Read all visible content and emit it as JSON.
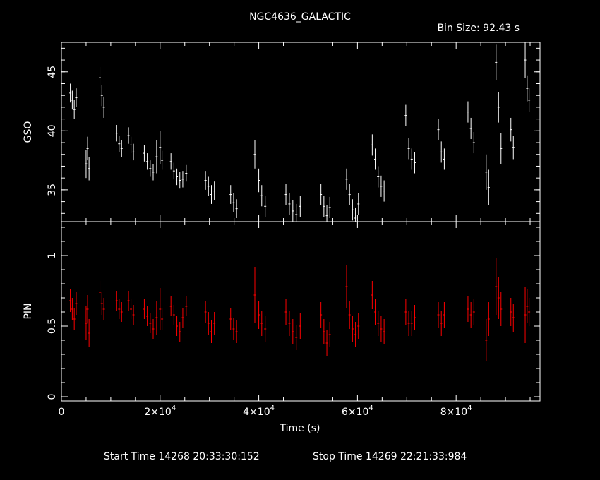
{
  "title": "NGC4636_GALACTIC",
  "bin_size": "Bin Size: 92.43 s",
  "start_time": "Start Time 14268 20:33:30:152",
  "stop_time": "Stop Time 14269 22:21:33:984",
  "colors": {
    "gso": "#ffffff",
    "pin": "#ff0000",
    "background": "#000000",
    "axes": "#ffffff"
  },
  "chart_data": [
    {
      "type": "scatter",
      "name": "GSO",
      "ylabel": "GSO",
      "xlabel": "",
      "xlim": [
        0,
        97000
      ],
      "ylim": [
        32.3,
        47.5
      ],
      "y_ticks": [
        35,
        40,
        45
      ],
      "y_tick_labels": [
        "35",
        "40",
        "45"
      ],
      "x_ticks": [
        0,
        20000,
        40000,
        60000,
        80000
      ],
      "series": [
        {
          "x": [
            1800,
            2200,
            2600,
            3000,
            5000,
            5300,
            5600,
            7800,
            8200,
            8600,
            11200,
            11700,
            12200,
            13600,
            14100,
            14600,
            16800,
            17400,
            18000,
            18600,
            19300,
            20000,
            20400,
            22200,
            22800,
            23400,
            24000,
            24600,
            25300,
            29200,
            29800,
            30400,
            31000,
            34300,
            34900,
            35500,
            39200,
            40000,
            40600,
            41300,
            45500,
            46200,
            46900,
            47600,
            48400,
            52600,
            53200,
            53800,
            54400,
            57800,
            58400,
            59000,
            59600,
            60200,
            63000,
            63600,
            64200,
            64800,
            65400,
            69800,
            70400,
            71000,
            71600,
            76400,
            77000,
            77600,
            82400,
            83000,
            83600,
            86100,
            86600,
            88100,
            88600,
            89100,
            91100,
            91600,
            94000,
            94400,
            94800
          ],
          "y": [
            43.2,
            42.6,
            41.8,
            42.8,
            37.2,
            38.5,
            36.8,
            44.5,
            43.0,
            42.0,
            39.8,
            38.9,
            38.5,
            39.6,
            38.8,
            38.2,
            38.1,
            37.4,
            36.8,
            36.5,
            37.8,
            38.6,
            37.5,
            37.4,
            36.6,
            36.1,
            35.8,
            35.9,
            36.4,
            35.8,
            35.3,
            34.6,
            34.9,
            34.6,
            33.9,
            33.4,
            38.0,
            35.8,
            34.5,
            33.6,
            34.6,
            33.8,
            33.2,
            32.9,
            33.6,
            34.6,
            33.6,
            32.8,
            33.5,
            35.9,
            34.6,
            33.3,
            32.6,
            33.8,
            38.8,
            37.6,
            36.1,
            35.3,
            34.9,
            41.3,
            38.5,
            37.6,
            37.3,
            40.1,
            38.2,
            37.6,
            41.6,
            40.2,
            39.0,
            36.5,
            35.2,
            45.8,
            42.0,
            38.5,
            40.1,
            38.6,
            46.0,
            43.6,
            42.6
          ],
          "err": [
            0.8,
            0.8,
            0.8,
            0.8,
            1.2,
            1.0,
            1.0,
            0.9,
            0.9,
            0.9,
            0.7,
            0.7,
            0.7,
            0.7,
            0.7,
            0.7,
            0.7,
            0.7,
            0.7,
            0.7,
            1.4,
            1.4,
            0.8,
            0.7,
            0.7,
            0.7,
            0.7,
            0.7,
            0.7,
            0.8,
            0.8,
            0.8,
            0.8,
            0.8,
            0.8,
            0.8,
            1.2,
            1.0,
            0.9,
            0.9,
            0.9,
            0.9,
            0.9,
            0.9,
            0.9,
            0.9,
            0.9,
            0.9,
            0.9,
            0.9,
            0.9,
            0.9,
            0.9,
            0.9,
            0.9,
            0.9,
            0.9,
            0.9,
            0.9,
            0.9,
            0.9,
            0.9,
            0.9,
            0.9,
            0.9,
            0.9,
            0.9,
            0.9,
            0.9,
            1.5,
            1.5,
            1.5,
            1.3,
            1.3,
            1.0,
            1.0,
            1.5,
            1.1,
            1.0
          ]
        }
      ]
    },
    {
      "type": "scatter",
      "name": "PIN",
      "ylabel": "PIN",
      "xlabel": "Time (s)",
      "xlim": [
        0,
        97000
      ],
      "ylim": [
        -0.03,
        1.24
      ],
      "y_ticks": [
        0,
        0.5,
        1
      ],
      "y_tick_labels": [
        "0",
        "0.5",
        "1"
      ],
      "x_ticks": [
        0,
        20000,
        40000,
        60000,
        80000
      ],
      "x_tick_labels": [
        {
          "mantissa": "0",
          "exp": ""
        },
        {
          "mantissa": "2×10",
          "exp": "4"
        },
        {
          "mantissa": "4×10",
          "exp": "4"
        },
        {
          "mantissa": "6×10",
          "exp": "4"
        },
        {
          "mantissa": "8×10",
          "exp": "4"
        }
      ],
      "series": [
        {
          "x": [
            1800,
            2200,
            2600,
            3000,
            5000,
            5300,
            5600,
            7800,
            8200,
            8600,
            11200,
            11700,
            12200,
            13600,
            14100,
            14600,
            16800,
            17400,
            18000,
            18600,
            19300,
            20000,
            20400,
            22200,
            22800,
            23400,
            24000,
            24600,
            25300,
            29200,
            29800,
            30400,
            31000,
            34300,
            34900,
            35500,
            39200,
            40000,
            40600,
            41300,
            45500,
            46200,
            46900,
            47600,
            48400,
            52600,
            53200,
            53800,
            54400,
            57800,
            58400,
            59000,
            59600,
            60200,
            63000,
            63600,
            64200,
            64800,
            65400,
            69800,
            70400,
            71000,
            71600,
            76400,
            77000,
            77600,
            82400,
            83000,
            83600,
            86100,
            86600,
            88100,
            88600,
            89100,
            91100,
            91600,
            94000,
            94400,
            94800
          ],
          "y": [
            0.68,
            0.62,
            0.55,
            0.66,
            0.52,
            0.62,
            0.45,
            0.74,
            0.66,
            0.62,
            0.68,
            0.62,
            0.6,
            0.68,
            0.62,
            0.58,
            0.62,
            0.57,
            0.52,
            0.48,
            0.56,
            0.62,
            0.55,
            0.64,
            0.58,
            0.5,
            0.46,
            0.56,
            0.64,
            0.6,
            0.52,
            0.46,
            0.52,
            0.55,
            0.48,
            0.46,
            0.72,
            0.58,
            0.52,
            0.48,
            0.6,
            0.52,
            0.46,
            0.42,
            0.5,
            0.58,
            0.46,
            0.38,
            0.44,
            0.78,
            0.58,
            0.48,
            0.44,
            0.5,
            0.72,
            0.6,
            0.52,
            0.48,
            0.46,
            0.6,
            0.52,
            0.52,
            0.56,
            0.58,
            0.52,
            0.58,
            0.62,
            0.58,
            0.6,
            0.4,
            0.55,
            0.78,
            0.7,
            0.62,
            0.6,
            0.56,
            0.58,
            0.64,
            0.6
          ],
          "err": [
            0.08,
            0.08,
            0.08,
            0.08,
            0.12,
            0.1,
            0.1,
            0.08,
            0.08,
            0.08,
            0.07,
            0.07,
            0.07,
            0.07,
            0.07,
            0.07,
            0.07,
            0.07,
            0.07,
            0.07,
            0.12,
            0.15,
            0.08,
            0.07,
            0.07,
            0.07,
            0.07,
            0.07,
            0.07,
            0.08,
            0.08,
            0.08,
            0.08,
            0.08,
            0.08,
            0.08,
            0.2,
            0.1,
            0.09,
            0.09,
            0.09,
            0.09,
            0.09,
            0.09,
            0.09,
            0.09,
            0.09,
            0.09,
            0.09,
            0.15,
            0.1,
            0.09,
            0.09,
            0.09,
            0.1,
            0.09,
            0.09,
            0.09,
            0.09,
            0.09,
            0.09,
            0.09,
            0.09,
            0.09,
            0.09,
            0.09,
            0.09,
            0.09,
            0.09,
            0.15,
            0.12,
            0.2,
            0.15,
            0.12,
            0.1,
            0.1,
            0.2,
            0.12,
            0.1
          ]
        }
      ]
    }
  ]
}
